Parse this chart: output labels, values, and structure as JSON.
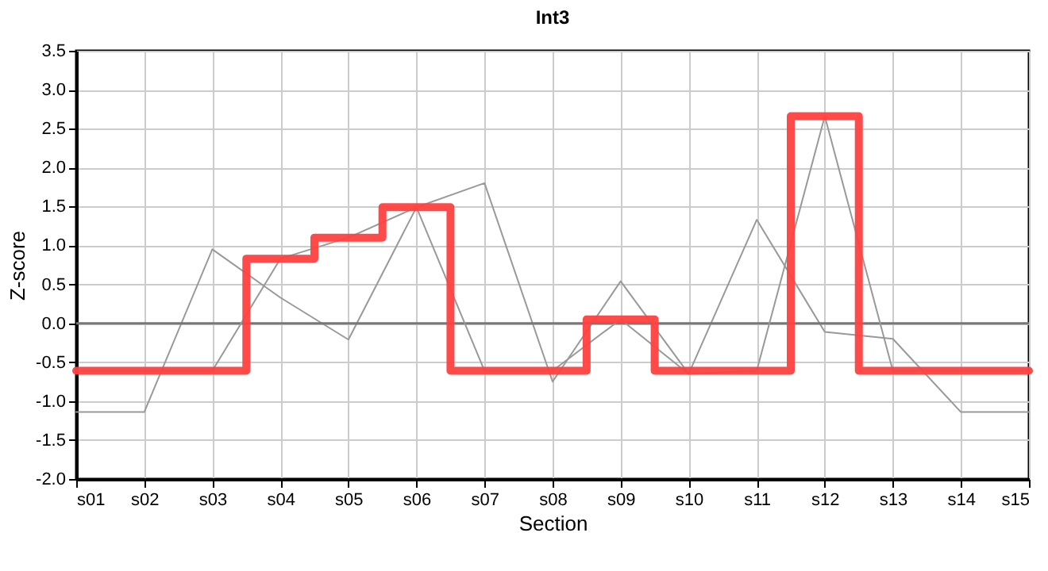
{
  "chart_data": {
    "type": "line",
    "title": "Int3",
    "xlabel": "Section",
    "ylabel": "Z-score",
    "categories": [
      "s01",
      "s02",
      "s03",
      "s04",
      "s05",
      "s06",
      "s07",
      "s08",
      "s09",
      "s10",
      "s11",
      "s12",
      "s13",
      "s14",
      "s15"
    ],
    "series": [
      {
        "type": "line",
        "color": "#999999",
        "values": [
          -1.14,
          -1.14,
          0.95,
          0.33,
          -0.21,
          1.49,
          1.8,
          -0.75,
          0.54,
          -0.65,
          1.33,
          -0.11,
          -0.2,
          -1.14,
          -1.14
        ]
      },
      {
        "type": "line",
        "color": "#999999",
        "values": [
          -0.61,
          -0.61,
          -0.61,
          0.83,
          1.1,
          1.49,
          -0.61,
          -0.61,
          0.05,
          -0.65,
          -0.61,
          2.66,
          -0.61,
          -0.61,
          -0.61
        ]
      },
      {
        "type": "step",
        "color": "#ff4040",
        "values": [
          -0.61,
          -0.61,
          -0.61,
          0.83,
          1.1,
          1.49,
          -0.61,
          -0.61,
          0.05,
          -0.61,
          -0.61,
          2.66,
          -0.61,
          -0.61,
          -0.61
        ]
      }
    ],
    "ylim": [
      -2.0,
      3.5
    ],
    "yticks": [
      {
        "value": -2,
        "label": "-2.0"
      },
      -1.5,
      {
        "value": -1,
        "label": "-1.0"
      },
      -0.5,
      {
        "value": 0,
        "label": "0.0"
      },
      0.5,
      {
        "value": 1,
        "label": "1.0"
      },
      1.5,
      {
        "value": 2,
        "label": "2.0"
      },
      2.5,
      {
        "value": 3,
        "label": "3.0"
      },
      3.5
    ],
    "ref_lines": [
      {
        "axis": "y",
        "value": 0,
        "color": "#777777"
      }
    ],
    "grid": true,
    "marker": "none",
    "line_style": "solid"
  }
}
